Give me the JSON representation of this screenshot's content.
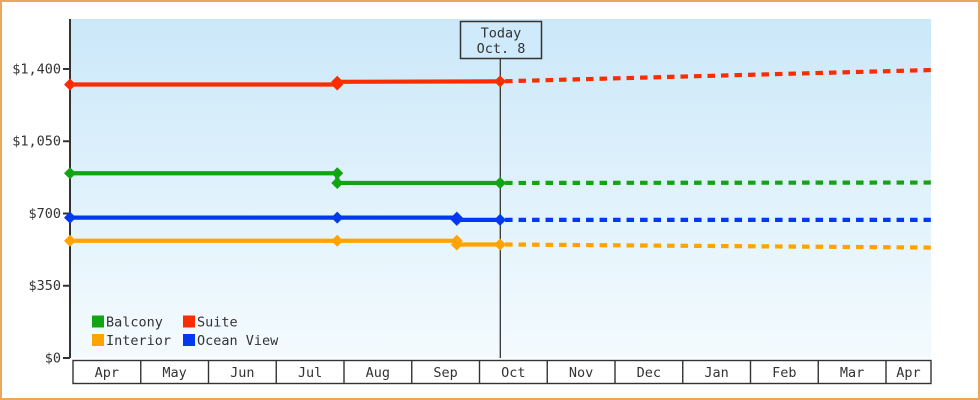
{
  "colors": {
    "frame_border": "#eba75c",
    "axis": "#333333",
    "text": "#333333",
    "plot_gradient_top": "#cbe8f9",
    "plot_gradient_bottom": "#f4fbfe",
    "today_box_fill": "#cfeafa",
    "month_row_fill": "#ffffff"
  },
  "today": {
    "label_line1": "Today",
    "label_line2": "Oct. 8",
    "t": 6.26
  },
  "chart_data": {
    "type": "line",
    "title": "",
    "xlabel": "",
    "ylabel": "",
    "x_axis": {
      "months": [
        "Apr",
        "May",
        "Jun",
        "Jul",
        "Aug",
        "Sep",
        "Oct",
        "Nov",
        "Dec",
        "Jan",
        "Feb",
        "Mar",
        "Apr"
      ],
      "t_start": 0,
      "t_end": 12.53
    },
    "y_axis": {
      "range": [
        0,
        1400
      ],
      "ticks": [
        {
          "v": 0,
          "label": "$0"
        },
        {
          "v": 350,
          "label": "$350"
        },
        {
          "v": 700,
          "label": "$700"
        },
        {
          "v": 1050,
          "label": "$1,050"
        },
        {
          "v": 1400,
          "label": "$1,400"
        }
      ]
    },
    "legend_position": "bottom-left-inside",
    "grid": false,
    "series": [
      {
        "name": "Balcony",
        "color": "#12a412",
        "solid": [
          [
            0,
            895
          ],
          [
            3.89,
            895
          ],
          [
            3.89,
            848
          ],
          [
            6.26,
            848
          ]
        ],
        "dashed": [
          [
            6.26,
            848
          ],
          [
            12.53,
            850
          ]
        ],
        "markers": [
          [
            0,
            895
          ],
          [
            3.89,
            895
          ],
          [
            3.89,
            848
          ],
          [
            6.26,
            848
          ]
        ]
      },
      {
        "name": "Suite",
        "color": "#fb2d00",
        "solid": [
          [
            0,
            1325
          ],
          [
            3.89,
            1325
          ],
          [
            3.89,
            1338
          ],
          [
            6.26,
            1340
          ]
        ],
        "dashed": [
          [
            6.26,
            1340
          ],
          [
            12.53,
            1395
          ]
        ],
        "markers": [
          [
            0,
            1325
          ],
          [
            3.89,
            1325
          ],
          [
            3.89,
            1338
          ],
          [
            6.26,
            1340
          ]
        ]
      },
      {
        "name": "Interior",
        "color": "#ffa300",
        "solid": [
          [
            0,
            568
          ],
          [
            5.63,
            568
          ],
          [
            5.63,
            550
          ],
          [
            6.26,
            550
          ]
        ],
        "dashed": [
          [
            6.26,
            550
          ],
          [
            12.53,
            535
          ]
        ],
        "markers": [
          [
            0,
            568
          ],
          [
            3.89,
            568
          ],
          [
            5.63,
            568
          ],
          [
            5.63,
            550
          ],
          [
            6.26,
            550
          ]
        ]
      },
      {
        "name": "Ocean View",
        "color": "#0239f0",
        "solid": [
          [
            0,
            680
          ],
          [
            5.63,
            680
          ],
          [
            5.63,
            669
          ],
          [
            6.26,
            669
          ]
        ],
        "dashed": [
          [
            6.26,
            669
          ],
          [
            12.53,
            669
          ]
        ],
        "markers": [
          [
            0,
            680
          ],
          [
            3.89,
            680
          ],
          [
            5.63,
            680
          ],
          [
            5.63,
            669
          ],
          [
            6.26,
            669
          ]
        ]
      }
    ]
  }
}
